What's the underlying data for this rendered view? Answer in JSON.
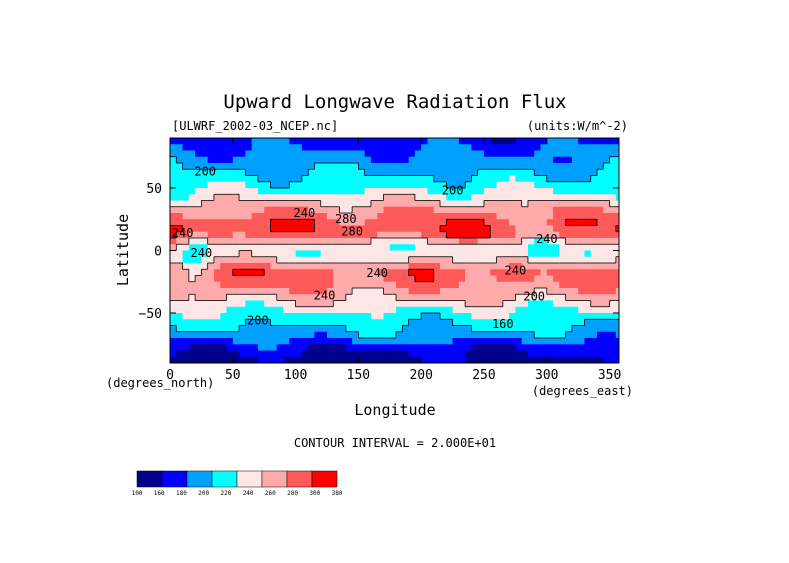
{
  "chart_data": {
    "type": "heatmap",
    "title": "Upward Longwave Radiation Flux",
    "source_label": "[ULWRF_2002-03_NCEP.nc]",
    "units_label": "(units:W/m^-2)",
    "xlabel": "Longitude",
    "ylabel": "Latitude",
    "x_unit_label": "(degrees_east)",
    "y_unit_label": "(degrees_north)",
    "xlim": [
      0,
      357.5
    ],
    "ylim": [
      -90,
      90
    ],
    "x_ticks": [
      "0",
      "50",
      "100",
      "150",
      "200",
      "250",
      "300",
      "350"
    ],
    "y_ticks": [
      "50",
      "0",
      "−50"
    ],
    "x_tick_values": [
      0,
      50,
      100,
      150,
      200,
      250,
      300,
      350
    ],
    "y_tick_values": [
      50,
      0,
      -50
    ],
    "contour_interval_label": "CONTOUR INTERVAL = 2.000E+01",
    "contour_labels": [
      "200",
      "200",
      "240",
      "280",
      "240",
      "280",
      "240",
      "240",
      "240",
      "240",
      "240",
      "200",
      "200",
      "160"
    ],
    "colorbar": {
      "levels": [
        "100",
        "160",
        "180",
        "200",
        "220",
        "240",
        "260",
        "280",
        "300",
        "380"
      ],
      "level_values": [
        100,
        160,
        180,
        200,
        220,
        240,
        260,
        280,
        300,
        380
      ],
      "colors": [
        "#00008b",
        "#0000ff",
        "#00a0ff",
        "#00ffff",
        "#ffe6e6",
        "#ffaaaa",
        "#ff5a5a",
        "#ff0000"
      ]
    },
    "zonal_structure": [
      {
        "lat": 90,
        "value": 170
      },
      {
        "lat": 75,
        "value": 185
      },
      {
        "lat": 62,
        "value": 200
      },
      {
        "lat": 50,
        "value": 215
      },
      {
        "lat": 42,
        "value": 232
      },
      {
        "lat": 32,
        "value": 258
      },
      {
        "lat": 20,
        "value": 278
      },
      {
        "lat": 12,
        "value": 272
      },
      {
        "lat": 5,
        "value": 240
      },
      {
        "lat": 0,
        "value": 230
      },
      {
        "lat": -8,
        "value": 245
      },
      {
        "lat": -18,
        "value": 272
      },
      {
        "lat": -28,
        "value": 262
      },
      {
        "lat": -38,
        "value": 242
      },
      {
        "lat": -48,
        "value": 220
      },
      {
        "lat": -58,
        "value": 205
      },
      {
        "lat": -68,
        "value": 192
      },
      {
        "lat": -78,
        "value": 165
      },
      {
        "lat": -90,
        "value": 150
      }
    ]
  }
}
